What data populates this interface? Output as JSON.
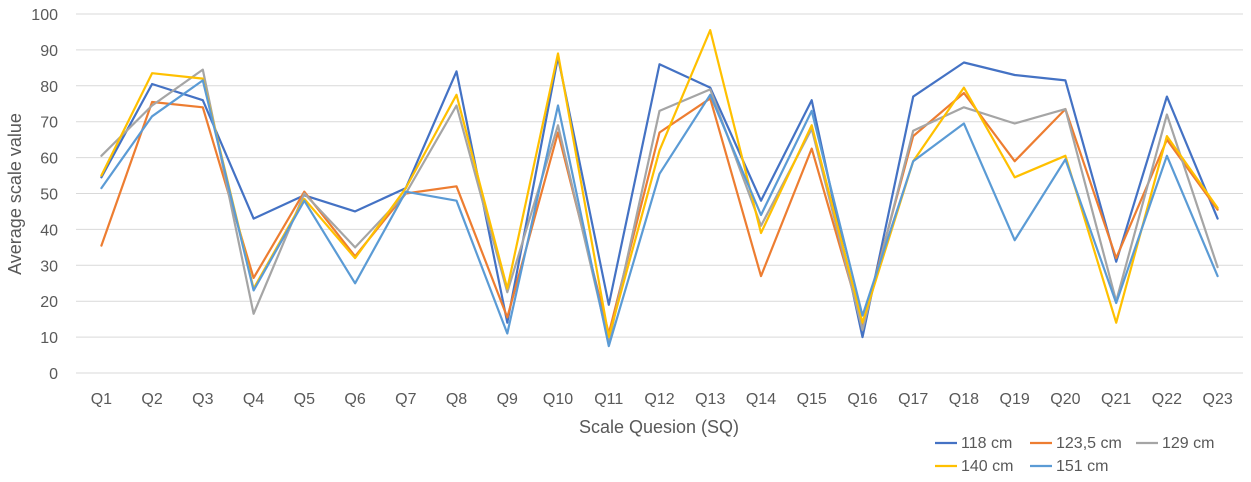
{
  "chart_data": {
    "type": "line",
    "title": "",
    "xlabel": "Scale Quesion (SQ)",
    "ylabel": "Average scale value",
    "ylim": [
      0,
      100
    ],
    "yticks": [
      0,
      10,
      20,
      30,
      40,
      50,
      60,
      70,
      80,
      90,
      100
    ],
    "grid": "horizontal",
    "legend_position": "bottom-right",
    "categories": [
      "Q1",
      "Q2",
      "Q3",
      "Q4",
      "Q5",
      "Q6",
      "Q7",
      "Q8",
      "Q9",
      "Q10",
      "Q11",
      "Q12",
      "Q13",
      "Q14",
      "Q15",
      "Q16",
      "Q17",
      "Q18",
      "Q19",
      "Q20",
      "Q21",
      "Q22",
      "Q23"
    ],
    "series": [
      {
        "name": "118 cm",
        "color": "#4472C4",
        "values": [
          54.5,
          80.5,
          76,
          43,
          49.5,
          45,
          51.5,
          84,
          14,
          88,
          19,
          86,
          79.5,
          48,
          76,
          10,
          77,
          86.5,
          83,
          81.5,
          31,
          77,
          43
        ]
      },
      {
        "name": "123,5 cm",
        "color": "#ED7D31",
        "values": [
          35.5,
          75.5,
          74,
          26.5,
          50.5,
          32.5,
          50,
          52,
          15.5,
          67,
          11,
          67,
          76.5,
          27,
          62.5,
          13.5,
          66,
          78,
          59,
          73.5,
          32,
          65,
          45.5
        ]
      },
      {
        "name": "129 cm",
        "color": "#A5A5A5",
        "values": [
          60.5,
          74.5,
          84.5,
          16.5,
          50,
          35,
          50,
          74.5,
          22.5,
          69,
          8.5,
          73,
          79,
          41,
          68,
          12,
          67.5,
          74,
          69.5,
          73.5,
          20,
          72,
          29.5
        ]
      },
      {
        "name": "140 cm",
        "color": "#FFC000",
        "values": [
          55,
          83.5,
          82,
          23.5,
          48.5,
          32,
          51.5,
          77.5,
          23.5,
          89,
          10,
          62,
          95.5,
          39,
          69,
          14,
          59,
          79.5,
          54.5,
          60.5,
          14,
          66,
          46
        ]
      },
      {
        "name": "151 cm",
        "color": "#5B9BD5",
        "values": [
          51.5,
          71.5,
          81.5,
          23,
          48,
          25,
          50.5,
          48,
          11,
          74.5,
          7.5,
          55.5,
          77.5,
          44,
          73,
          16,
          59,
          69.5,
          37,
          59.5,
          19.5,
          60.5,
          27
        ]
      }
    ]
  }
}
